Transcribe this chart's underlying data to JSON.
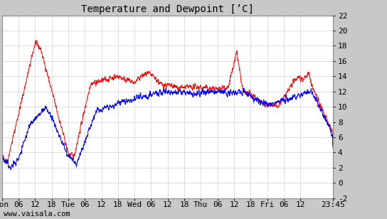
{
  "title": "Temperature and Dewpoint [’C]",
  "ylim": [
    -2,
    22
  ],
  "yticks": [
    -2,
    0,
    2,
    4,
    6,
    8,
    10,
    12,
    14,
    16,
    18,
    20,
    22
  ],
  "xtick_labels": [
    "Mon",
    "06",
    "12",
    "18",
    "Tue",
    "06",
    "12",
    "18",
    "Wed",
    "06",
    "12",
    "18",
    "Thu",
    "06",
    "12",
    "18",
    "Fri",
    "06",
    "12",
    "23:45"
  ],
  "temp_color": "#ff0000",
  "dew_color": "#0000ff",
  "bg_color": "#ffffff",
  "grid_color": "#d0d0d0",
  "outer_bg": "#c8c8c8",
  "watermark": "www.vaisala.com",
  "title_fontsize": 10,
  "tick_fontsize": 8,
  "watermark_fontsize": 7.5,
  "linewidth": 0.7
}
